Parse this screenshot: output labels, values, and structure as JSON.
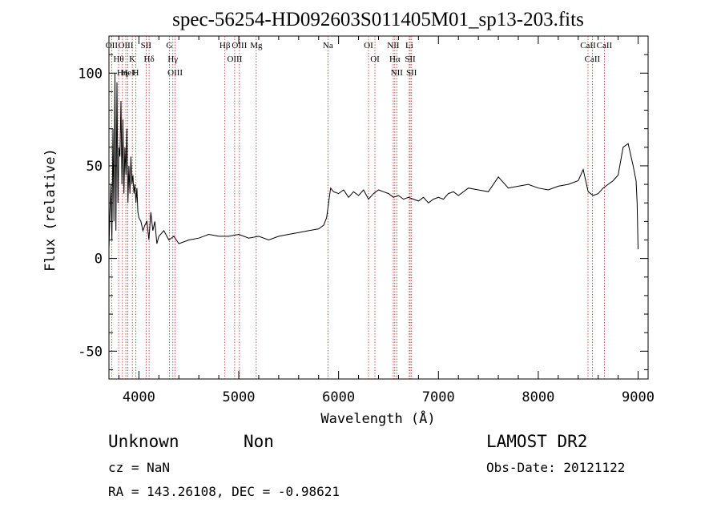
{
  "chart_data": {
    "type": "line",
    "title": "spec-56254-HD092603S011405M01_sp13-203.fits",
    "xlabel": "Wavelength (Å)",
    "ylabel": "Flux (relative)",
    "xlim": [
      3700,
      9100
    ],
    "ylim": [
      -65,
      120
    ],
    "xticks": [
      4000,
      5000,
      6000,
      7000,
      8000,
      9000
    ],
    "yticks": [
      -50,
      0,
      50,
      100
    ],
    "grid": false,
    "series": [
      {
        "color": "#000000",
        "x": [
          3700,
          3710,
          3720,
          3730,
          3740,
          3750,
          3760,
          3770,
          3780,
          3790,
          3800,
          3810,
          3820,
          3830,
          3840,
          3850,
          3860,
          3870,
          3880,
          3890,
          3900,
          3910,
          3920,
          3930,
          3940,
          3950,
          3960,
          3970,
          3980,
          3990,
          4000,
          4020,
          4040,
          4060,
          4080,
          4100,
          4120,
          4140,
          4160,
          4180,
          4200,
          4250,
          4300,
          4350,
          4400,
          4500,
          4600,
          4700,
          4800,
          4900,
          5000,
          5100,
          5200,
          5300,
          5400,
          5500,
          5600,
          5700,
          5800,
          5850,
          5880,
          5900,
          5920,
          5950,
          6000,
          6050,
          6100,
          6150,
          6200,
          6250,
          6300,
          6350,
          6400,
          6450,
          6500,
          6550,
          6600,
          6650,
          6700,
          6750,
          6800,
          6850,
          6900,
          6950,
          7000,
          7050,
          7100,
          7150,
          7200,
          7300,
          7400,
          7500,
          7600,
          7700,
          7800,
          7900,
          8000,
          8100,
          8200,
          8300,
          8400,
          8450,
          8500,
          8550,
          8600,
          8650,
          8700,
          8750,
          8800,
          8850,
          8900,
          8950,
          8980,
          8990,
          9000
        ],
        "values": [
          5,
          25,
          40,
          10,
          70,
          20,
          100,
          15,
          95,
          30,
          60,
          55,
          85,
          40,
          75,
          35,
          60,
          45,
          70,
          30,
          50,
          35,
          55,
          40,
          45,
          35,
          40,
          30,
          38,
          25,
          22,
          20,
          15,
          18,
          20,
          10,
          25,
          15,
          20,
          8,
          12,
          15,
          10,
          12,
          8,
          10,
          11,
          13,
          12,
          12,
          13,
          11,
          12,
          10,
          12,
          13,
          14,
          15,
          16,
          18,
          22,
          30,
          38,
          36,
          35,
          37,
          33,
          36,
          34,
          37,
          32,
          35,
          37,
          36,
          35,
          33,
          34,
          32,
          33,
          32,
          31,
          33,
          30,
          32,
          33,
          32,
          35,
          36,
          34,
          38,
          37,
          36,
          44,
          38,
          39,
          40,
          38,
          37,
          39,
          40,
          42,
          48,
          36,
          34,
          35,
          38,
          40,
          42,
          45,
          60,
          62,
          50,
          42,
          30,
          5
        ]
      }
    ],
    "lines": [
      {
        "name": "Hθ",
        "x": 3797
      },
      {
        "name": "OII",
        "x": 3727
      },
      {
        "name": "OIII",
        "x": 3869
      },
      {
        "name": "K",
        "x": 3934
      },
      {
        "name": "H",
        "x": 3969
      },
      {
        "name": "HeI",
        "x": 3889
      },
      {
        "name": "Hη",
        "x": 3835
      },
      {
        "name": "Hδ",
        "x": 4102
      },
      {
        "name": "SII",
        "x": 4072
      },
      {
        "name": "OIII",
        "x": 4363
      },
      {
        "name": "Hγ",
        "x": 4340
      },
      {
        "name": "G",
        "x": 4305
      },
      {
        "name": "Hβ",
        "x": 4861
      },
      {
        "name": "OIII",
        "x": 4959
      },
      {
        "name": "OIII",
        "x": 5007
      },
      {
        "name": "Mg",
        "x": 5175
      },
      {
        "name": "Na",
        "x": 5893
      },
      {
        "name": "OI",
        "x": 6300
      },
      {
        "name": "OI",
        "x": 6364
      },
      {
        "name": "Hα",
        "x": 6563
      },
      {
        "name": "NII",
        "x": 6548
      },
      {
        "name": "NII",
        "x": 6583
      },
      {
        "name": "SII",
        "x": 6717
      },
      {
        "name": "SII",
        "x": 6731
      },
      {
        "name": "Li",
        "x": 6708
      },
      {
        "name": "CaII",
        "x": 8498
      },
      {
        "name": "CaII",
        "x": 8542
      },
      {
        "name": "CaII",
        "x": 8662
      }
    ]
  },
  "info": {
    "classification": "Unknown",
    "subclass": "Non",
    "survey": "LAMOST DR2",
    "cz": "cz = NaN",
    "obs_date": "Obs-Date: 20121122",
    "coords": "RA = 143.26108, DEC =  -0.98621"
  }
}
